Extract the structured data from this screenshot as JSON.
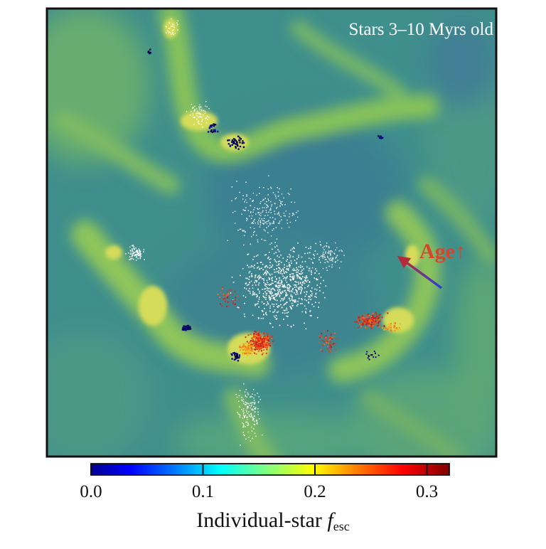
{
  "panel": {
    "title": "Stars 3–10 Myrs old",
    "annotation": "Age↑"
  },
  "colorbar": {
    "label_main": "Individual-star ",
    "label_symbol": "f",
    "label_subscript": "esc",
    "ticks": [
      "0.0",
      "0.1",
      "0.2",
      "0.3"
    ],
    "tick_values": [
      0.0,
      0.1,
      0.2,
      0.3
    ],
    "range": [
      0.0,
      0.32
    ],
    "colormap": [
      "#00008f",
      "#0000ff",
      "#0080ff",
      "#00ffff",
      "#80ff80",
      "#ffff00",
      "#ff8000",
      "#ff0000",
      "#800000"
    ]
  },
  "colors": {
    "background_field": "#3f8f8c",
    "filament": "#7fbf5a",
    "bright_filament": "#c7d85a",
    "annotation_red": "#d8452c",
    "young_star": "#ffffff"
  }
}
